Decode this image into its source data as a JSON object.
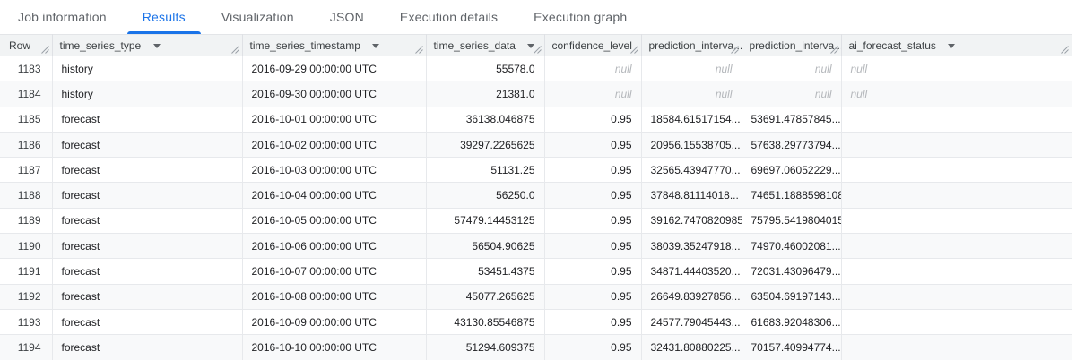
{
  "tabs": [
    {
      "label": "Job information",
      "active": false
    },
    {
      "label": "Results",
      "active": true
    },
    {
      "label": "Visualization",
      "active": false
    },
    {
      "label": "JSON",
      "active": false
    },
    {
      "label": "Execution details",
      "active": false
    },
    {
      "label": "Execution graph",
      "active": false
    }
  ],
  "accent_color": "#1a73e8",
  "table": {
    "columns": [
      {
        "name": "row",
        "label": "Row",
        "align": "right",
        "menu": false
      },
      {
        "name": "time-series-type",
        "label": "time_series_type",
        "align": "left",
        "menu": true
      },
      {
        "name": "time-series-timestamp",
        "label": "time_series_timestamp",
        "align": "left",
        "menu": true
      },
      {
        "name": "time-series-data",
        "label": "time_series_data",
        "align": "right",
        "menu": true
      },
      {
        "name": "confidence-level",
        "label": "confidence_level",
        "align": "right",
        "menu": true
      },
      {
        "name": "prediction-interval-lower",
        "label": "prediction_interva...",
        "align": "right",
        "menu": false
      },
      {
        "name": "prediction-interval-upper",
        "label": "prediction_interva...",
        "align": "right",
        "menu": false
      },
      {
        "name": "ai-forecast-status",
        "label": "ai_forecast_status",
        "align": "left",
        "menu": true
      }
    ],
    "rows": [
      [
        "1183",
        "history",
        "2016-09-29 00:00:00 UTC",
        "55578.0",
        "null",
        "null",
        "null",
        "null"
      ],
      [
        "1184",
        "history",
        "2016-09-30 00:00:00 UTC",
        "21381.0",
        "null",
        "null",
        "null",
        "null"
      ],
      [
        "1185",
        "forecast",
        "2016-10-01 00:00:00 UTC",
        "36138.046875",
        "0.95",
        "18584.61517154...",
        "53691.47857845...",
        ""
      ],
      [
        "1186",
        "forecast",
        "2016-10-02 00:00:00 UTC",
        "39297.2265625",
        "0.95",
        "20956.15538705...",
        "57638.29773794...",
        ""
      ],
      [
        "1187",
        "forecast",
        "2016-10-03 00:00:00 UTC",
        "51131.25",
        "0.95",
        "32565.43947770...",
        "69697.06052229...",
        ""
      ],
      [
        "1188",
        "forecast",
        "2016-10-04 00:00:00 UTC",
        "56250.0",
        "0.95",
        "37848.81114018...",
        "74651.1888598108",
        ""
      ],
      [
        "1189",
        "forecast",
        "2016-10-05 00:00:00 UTC",
        "57479.14453125",
        "0.95",
        "39162.7470820985",
        "75795.5419804015",
        ""
      ],
      [
        "1190",
        "forecast",
        "2016-10-06 00:00:00 UTC",
        "56504.90625",
        "0.95",
        "38039.35247918...",
        "74970.46002081...",
        ""
      ],
      [
        "1191",
        "forecast",
        "2016-10-07 00:00:00 UTC",
        "53451.4375",
        "0.95",
        "34871.44403520...",
        "72031.43096479...",
        ""
      ],
      [
        "1192",
        "forecast",
        "2016-10-08 00:00:00 UTC",
        "45077.265625",
        "0.95",
        "26649.83927856...",
        "63504.69197143...",
        ""
      ],
      [
        "1193",
        "forecast",
        "2016-10-09 00:00:00 UTC",
        "43130.85546875",
        "0.95",
        "24577.79045443...",
        "61683.92048306...",
        ""
      ],
      [
        "1194",
        "forecast",
        "2016-10-10 00:00:00 UTC",
        "51294.609375",
        "0.95",
        "32431.80880225...",
        "70157.40994774...",
        ""
      ]
    ]
  }
}
